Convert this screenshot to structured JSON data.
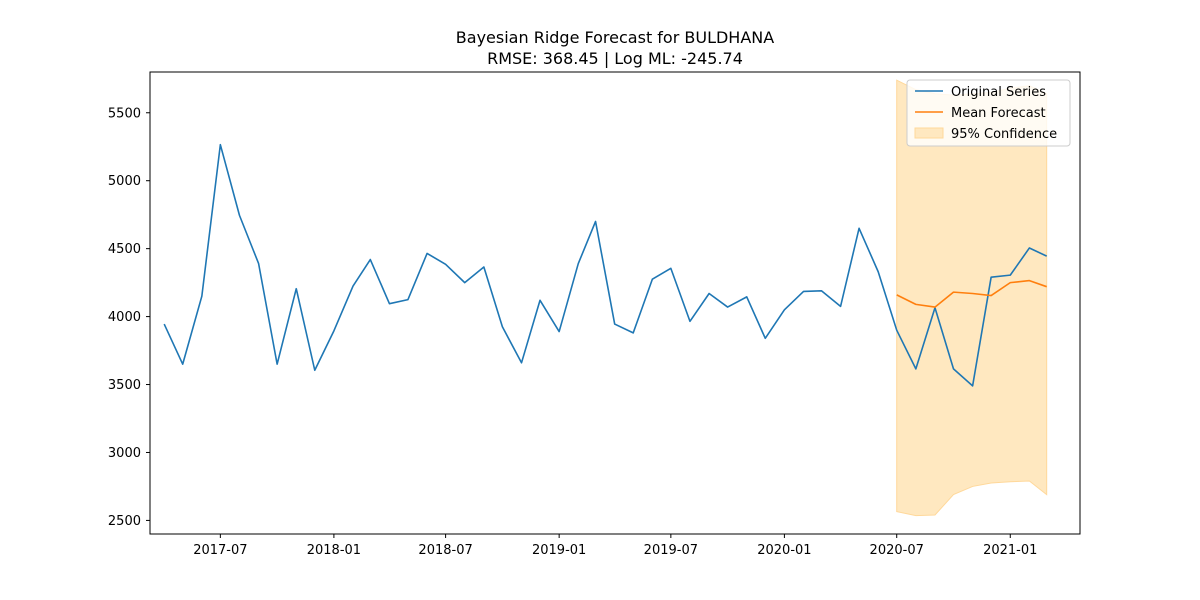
{
  "chart_data": {
    "type": "line",
    "title": "Bayesian Ridge Forecast for BULDHANA",
    "subtitle": "RMSE: 368.45 | Log ML: -245.74",
    "xlabel": "",
    "ylabel": "",
    "ylim": [
      2400,
      5800
    ],
    "xlim": [
      "2017-03-09",
      "2021-04-24"
    ],
    "x_ticks": [
      {
        "date": "2017-07-01",
        "label": "2017-07"
      },
      {
        "date": "2018-01-01",
        "label": "2018-01"
      },
      {
        "date": "2018-07-01",
        "label": "2018-07"
      },
      {
        "date": "2019-01-01",
        "label": "2019-01"
      },
      {
        "date": "2019-07-01",
        "label": "2019-07"
      },
      {
        "date": "2020-01-01",
        "label": "2020-01"
      },
      {
        "date": "2020-07-01",
        "label": "2020-07"
      },
      {
        "date": "2021-01-01",
        "label": "2021-01"
      }
    ],
    "y_ticks": [
      2500,
      3000,
      3500,
      4000,
      4500,
      5000,
      5500
    ],
    "grid": false,
    "legend_position": "top-right",
    "series": [
      {
        "name": "Original Series",
        "color": "#1f77b4",
        "x": [
          "2017-04-01",
          "2017-05-01",
          "2017-06-01",
          "2017-07-01",
          "2017-08-01",
          "2017-09-01",
          "2017-10-01",
          "2017-11-01",
          "2017-12-01",
          "2018-01-01",
          "2018-02-01",
          "2018-03-01",
          "2018-04-01",
          "2018-05-01",
          "2018-06-01",
          "2018-07-01",
          "2018-08-01",
          "2018-09-01",
          "2018-10-01",
          "2018-11-01",
          "2018-12-01",
          "2019-01-01",
          "2019-02-01",
          "2019-03-01",
          "2019-04-01",
          "2019-05-01",
          "2019-06-01",
          "2019-07-01",
          "2019-08-01",
          "2019-09-01",
          "2019-10-01",
          "2019-11-01",
          "2019-12-01",
          "2020-01-01",
          "2020-02-01",
          "2020-03-01",
          "2020-04-01",
          "2020-05-01",
          "2020-06-01",
          "2020-07-01",
          "2020-08-01",
          "2020-09-01",
          "2020-10-01",
          "2020-11-01",
          "2020-12-01",
          "2021-01-01",
          "2021-02-01",
          "2021-03-01"
        ],
        "values": [
          3945,
          3650,
          4150,
          5265,
          4745,
          4390,
          3650,
          4205,
          3605,
          3895,
          4225,
          4420,
          4095,
          4125,
          4465,
          4385,
          4250,
          4365,
          3925,
          3660,
          4120,
          3890,
          4390,
          4700,
          3945,
          3880,
          4275,
          4355,
          3965,
          4170,
          4070,
          4145,
          3840,
          4050,
          4185,
          4190,
          4075,
          4650,
          4330,
          3900,
          3615,
          4065,
          3615,
          3490,
          4290,
          4305,
          4505,
          4445
        ]
      },
      {
        "name": "Mean Forecast",
        "color": "#ff7f0e",
        "x": [
          "2020-07-01",
          "2020-08-01",
          "2020-09-01",
          "2020-10-01",
          "2020-11-01",
          "2020-12-01",
          "2021-01-01",
          "2021-02-01",
          "2021-03-01"
        ],
        "values": [
          4160,
          4090,
          4070,
          4180,
          4170,
          4155,
          4250,
          4265,
          4220
        ]
      }
    ],
    "band": {
      "name": "95% Confidence",
      "color": "#ffe8c0",
      "x": [
        "2020-07-01",
        "2020-08-01",
        "2020-09-01",
        "2020-10-01",
        "2020-11-01",
        "2020-12-01",
        "2021-01-01",
        "2021-02-01",
        "2021-03-01"
      ],
      "upper": [
        5740,
        5670,
        5640,
        5630,
        5640,
        5650,
        5680,
        5700,
        5640
      ],
      "lower": [
        2565,
        2535,
        2540,
        2690,
        2750,
        2775,
        2785,
        2790,
        2690
      ]
    }
  }
}
